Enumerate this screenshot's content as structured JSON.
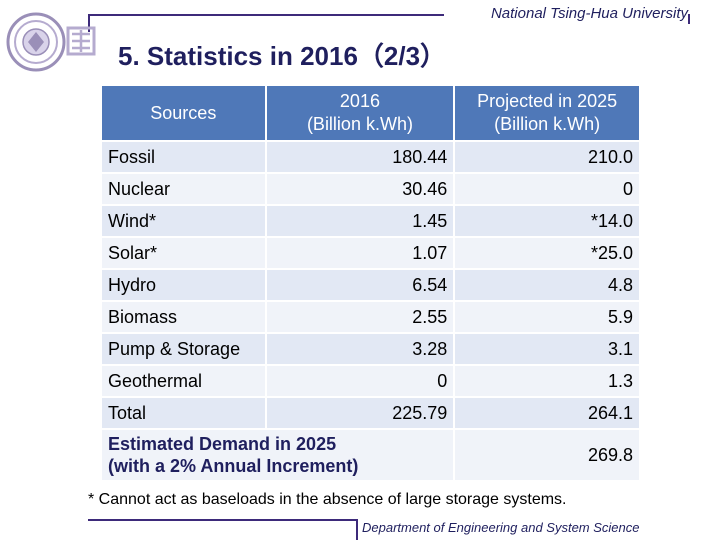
{
  "header": {
    "university": "National Tsing-Hua University"
  },
  "title": "5. Statistics in 2016（2/3）",
  "table": {
    "headers": {
      "sources": "Sources",
      "y2016_line1": "2016",
      "y2016_line2": "(Billion k.Wh)",
      "y2025_line1": "Projected in 2025",
      "y2025_line2": "(Billion k.Wh)"
    },
    "rows": [
      {
        "source": "Fossil",
        "y2016": "180.44",
        "y2025": "210.0"
      },
      {
        "source": "Nuclear",
        "y2016": "30.46",
        "y2025": "0"
      },
      {
        "source": "Wind*",
        "y2016": "1.45",
        "y2025": "*14.0"
      },
      {
        "source": "Solar*",
        "y2016": "1.07",
        "y2025": "*25.0"
      },
      {
        "source": "Hydro",
        "y2016": "6.54",
        "y2025": "4.8"
      },
      {
        "source": "Biomass",
        "y2016": "2.55",
        "y2025": "5.9"
      },
      {
        "source": "Pump & Storage",
        "y2016": "3.28",
        "y2025": "3.1"
      },
      {
        "source": "Geothermal",
        "y2016": "0",
        "y2025": "1.3"
      },
      {
        "source": "Total",
        "y2016": "225.79",
        "y2025": "264.1"
      }
    ],
    "demand": {
      "line1": "Estimated Demand in 2025",
      "line2": "(with a 2% Annual Increment)",
      "value": "269.8"
    }
  },
  "footnote": "* Cannot act as baseloads in the absence of large storage systems.",
  "footer": {
    "department": "Department of Engineering and System Science"
  },
  "colors": {
    "header_fill": "#4f78b8",
    "row_fill": "#e2e8f4",
    "title_color": "#1f1f5e"
  }
}
